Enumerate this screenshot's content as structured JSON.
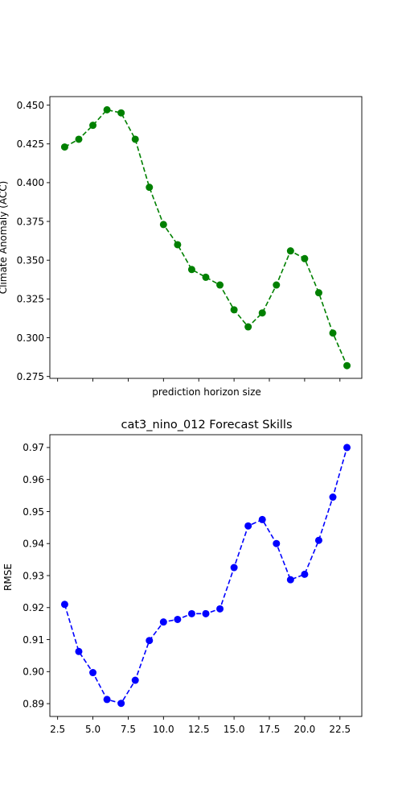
{
  "chart_data": [
    {
      "type": "line",
      "title": "",
      "xlabel": "prediction horizon size",
      "ylabel": "Climate Anomaly (ACC)",
      "xlim": [
        1.95,
        24.05
      ],
      "ylim": [
        0.2738,
        0.4555
      ],
      "xticks": [
        2.5,
        5.0,
        7.5,
        10.0,
        12.5,
        15.0,
        17.5,
        20.0,
        22.5
      ],
      "xtick_labels_visible": false,
      "yticks": [
        0.275,
        0.3,
        0.325,
        0.35,
        0.375,
        0.4,
        0.425,
        0.45
      ],
      "ytick_labels": [
        "0.275",
        "0.300",
        "0.325",
        "0.350",
        "0.375",
        "0.400",
        "0.425",
        "0.450"
      ],
      "grid": false,
      "series": [
        {
          "color": "#008000",
          "linestyle": "dashed",
          "marker": "circle",
          "x": [
            3,
            4,
            5,
            6,
            7,
            8,
            9,
            10,
            11,
            12,
            13,
            14,
            15,
            16,
            17,
            18,
            19,
            20,
            21,
            22,
            23
          ],
          "y": [
            0.423,
            0.428,
            0.437,
            0.447,
            0.445,
            0.428,
            0.397,
            0.373,
            0.36,
            0.344,
            0.339,
            0.334,
            0.318,
            0.307,
            0.316,
            0.334,
            0.356,
            0.351,
            0.329,
            0.303,
            0.282
          ]
        }
      ]
    },
    {
      "type": "line",
      "title": "cat3_nino_012 Forecast Skills",
      "xlabel": "",
      "ylabel": "RMSE",
      "xlim": [
        1.95,
        24.05
      ],
      "ylim": [
        0.886,
        0.974
      ],
      "xticks": [
        2.5,
        5.0,
        7.5,
        10.0,
        12.5,
        15.0,
        17.5,
        20.0,
        22.5
      ],
      "xtick_labels": [
        "2.5",
        "5.0",
        "7.5",
        "10.0",
        "12.5",
        "15.0",
        "17.5",
        "20.0",
        "22.5"
      ],
      "yticks": [
        0.89,
        0.9,
        0.91,
        0.92,
        0.93,
        0.94,
        0.95,
        0.96,
        0.97
      ],
      "ytick_labels": [
        "0.89",
        "0.90",
        "0.91",
        "0.92",
        "0.93",
        "0.94",
        "0.95",
        "0.96",
        "0.97"
      ],
      "grid": false,
      "series": [
        {
          "color": "#0000ff",
          "linestyle": "dashed",
          "marker": "circle",
          "x": [
            3,
            4,
            5,
            6,
            7,
            8,
            9,
            10,
            11,
            12,
            13,
            14,
            15,
            16,
            17,
            18,
            19,
            20,
            21,
            22,
            23
          ],
          "y": [
            0.921,
            0.9063,
            0.8997,
            0.8913,
            0.8901,
            0.8973,
            0.9097,
            0.9155,
            0.9163,
            0.9181,
            0.9181,
            0.9196,
            0.9325,
            0.9455,
            0.9475,
            0.94,
            0.9287,
            0.9304,
            0.941,
            0.9545,
            0.97
          ]
        }
      ]
    }
  ]
}
